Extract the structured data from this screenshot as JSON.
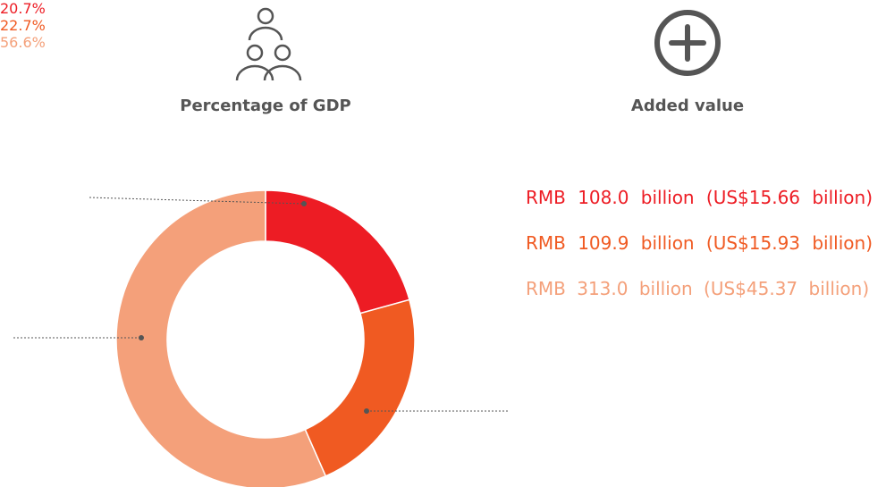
{
  "chart_data": {
    "type": "pie",
    "donut": true,
    "title": "Percentage of GDP",
    "values": [
      20.7,
      22.7,
      56.6
    ],
    "value_labels": [
      "20.7%",
      "22.7%",
      "56.6%"
    ],
    "colors": [
      "#ed1c24",
      "#f05a22",
      "#f4a07a"
    ]
  },
  "added_value": {
    "title": "Added value",
    "items": [
      "RMB 108.0 billion (US$15.66 billion)",
      "RMB 109.9 billion (US$15.93 billion)",
      "RMB 313.0 billion (US$45.37 billion)"
    ],
    "colors": [
      "#ed1c24",
      "#f05a22",
      "#f4a07a"
    ]
  }
}
